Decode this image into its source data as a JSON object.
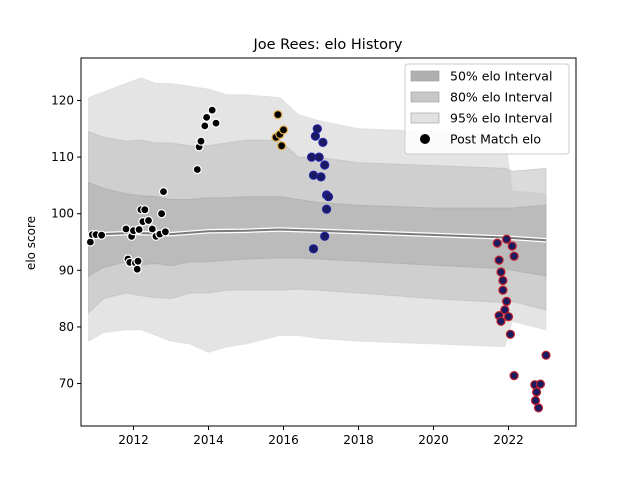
{
  "chart_data": {
    "type": "scatter",
    "title": "Joe Rees: elo History",
    "xlabel": "",
    "ylabel": "elo score",
    "xlim": [
      2010.6,
      2023.8
    ],
    "ylim": [
      62.5,
      127.5
    ],
    "x_ticks": [
      2012,
      2014,
      2016,
      2018,
      2020,
      2022
    ],
    "y_ticks": [
      70,
      80,
      90,
      100,
      110,
      120
    ],
    "grid": false,
    "legend": {
      "placement": "top-right",
      "entries": [
        {
          "label": "50% elo Interval",
          "color": "#b0b0b0"
        },
        {
          "label": "80% elo Interval",
          "color": "#c8c8c8"
        },
        {
          "label": "95% elo Interval",
          "color": "#e2e2e2"
        },
        {
          "label": "Post Match elo",
          "color": "#000000"
        }
      ]
    },
    "mean_line": {
      "x": [
        2010.8,
        2012.0,
        2013.0,
        2014.0,
        2015.0,
        2015.9,
        2016.9,
        2021.9,
        2023.0
      ],
      "y": [
        96.3,
        96.6,
        96.4,
        96.9,
        97.0,
        97.2,
        97.0,
        95.8,
        95.3
      ]
    },
    "bands": {
      "x": [
        2010.8,
        2011.2,
        2011.8,
        2012.2,
        2012.6,
        2013.0,
        2013.5,
        2014.0,
        2014.5,
        2015.0,
        2015.9,
        2016.4,
        2016.9,
        2018.0,
        2020.0,
        2021.9,
        2022.1,
        2023.0
      ],
      "ci50_low": [
        89.0,
        90.5,
        91.5,
        91.0,
        91.2,
        90.8,
        91.5,
        91.5,
        91.8,
        92.0,
        92.2,
        92.2,
        92.0,
        91.6,
        90.9,
        90.3,
        90.0,
        89.0
      ],
      "ci50_high": [
        105.5,
        104.5,
        103.5,
        103.2,
        103.0,
        102.5,
        102.5,
        102.8,
        102.8,
        103.0,
        103.0,
        102.5,
        102.0,
        101.5,
        101.0,
        101.0,
        101.0,
        101.5
      ],
      "ci80_low": [
        82.5,
        85.0,
        86.0,
        85.5,
        85.2,
        85.0,
        86.0,
        86.0,
        86.5,
        86.5,
        86.5,
        86.7,
        86.5,
        86.0,
        85.0,
        84.3,
        84.5,
        83.0
      ],
      "ci80_high": [
        114.5,
        113.5,
        112.8,
        113.0,
        112.5,
        112.5,
        112.0,
        112.0,
        112.5,
        113.0,
        113.0,
        110.0,
        110.0,
        109.0,
        108.5,
        108.0,
        107.5,
        108.0
      ],
      "ci95_low": [
        77.5,
        79.0,
        79.5,
        79.5,
        78.5,
        77.5,
        77.0,
        75.5,
        76.5,
        77.0,
        78.5,
        78.5,
        78.0,
        77.5,
        77.0,
        76.5,
        81.0,
        79.5
      ],
      "ci95_high": [
        120.5,
        121.5,
        123.0,
        124.0,
        123.0,
        123.0,
        122.5,
        122.0,
        121.0,
        121.0,
        120.5,
        117.5,
        116.5,
        115.0,
        114.5,
        114.0,
        104.0,
        103.5
      ]
    },
    "series": [
      {
        "name": "Post Match elo",
        "edgecolor": "#ffffff",
        "facecolor": "#000000",
        "x": [
          2010.85,
          2010.9,
          2011.0,
          2011.15,
          2011.8,
          2011.85,
          2011.9,
          2011.95,
          2012.0,
          2012.05,
          2012.1,
          2012.12,
          2012.15,
          2012.2,
          2012.25,
          2012.3,
          2012.4,
          2012.5,
          2012.6,
          2012.7,
          2012.75,
          2012.8,
          2012.85,
          2013.7,
          2013.75,
          2013.8,
          2013.9,
          2013.95,
          2014.1,
          2014.2
        ],
        "y": [
          95.0,
          96.3,
          96.3,
          96.2,
          97.3,
          92.0,
          91.4,
          96.0,
          97.0,
          91.3,
          90.2,
          91.6,
          97.2,
          100.7,
          98.6,
          100.7,
          98.8,
          97.3,
          96.0,
          96.4,
          100.0,
          103.9,
          96.8,
          107.8,
          111.8,
          112.8,
          115.5,
          117.0,
          118.3,
          116.0
        ]
      },
      {
        "name": "",
        "edgecolor": "#e8b04a",
        "facecolor": "#000000",
        "x": [
          2015.8,
          2015.85,
          2015.9,
          2015.95,
          2016.0
        ],
        "y": [
          113.5,
          117.5,
          114.0,
          112.0,
          114.8
        ]
      },
      {
        "name": "",
        "edgecolor": "#2020a0",
        "facecolor": "#1a1a60",
        "x": [
          2016.75,
          2016.8,
          2016.85,
          2016.9,
          2016.95,
          2017.0,
          2017.05,
          2017.1,
          2017.15,
          2017.2,
          2017.15,
          2017.1,
          2016.8
        ],
        "y": [
          110.0,
          106.8,
          113.7,
          115.0,
          110.0,
          106.5,
          112.6,
          108.6,
          103.3,
          103.0,
          100.8,
          96.0,
          93.8
        ]
      },
      {
        "name": "",
        "edgecolor": "#c0202a",
        "facecolor": "#1a1a60",
        "x": [
          2021.7,
          2021.75,
          2021.8,
          2021.85,
          2021.9,
          2021.95,
          2022.0,
          2022.05,
          2022.1,
          2022.15,
          2021.75,
          2021.8,
          2021.85,
          2021.95,
          2022.15,
          2022.7,
          2022.75,
          2022.8,
          2022.85,
          2023.0,
          2022.72
        ],
        "y": [
          94.8,
          91.8,
          89.7,
          86.5,
          83.0,
          84.5,
          81.8,
          78.7,
          94.3,
          92.5,
          82.0,
          81.0,
          88.2,
          95.5,
          71.4,
          69.8,
          68.5,
          65.7,
          69.9,
          75.0,
          67.0
        ]
      }
    ]
  }
}
